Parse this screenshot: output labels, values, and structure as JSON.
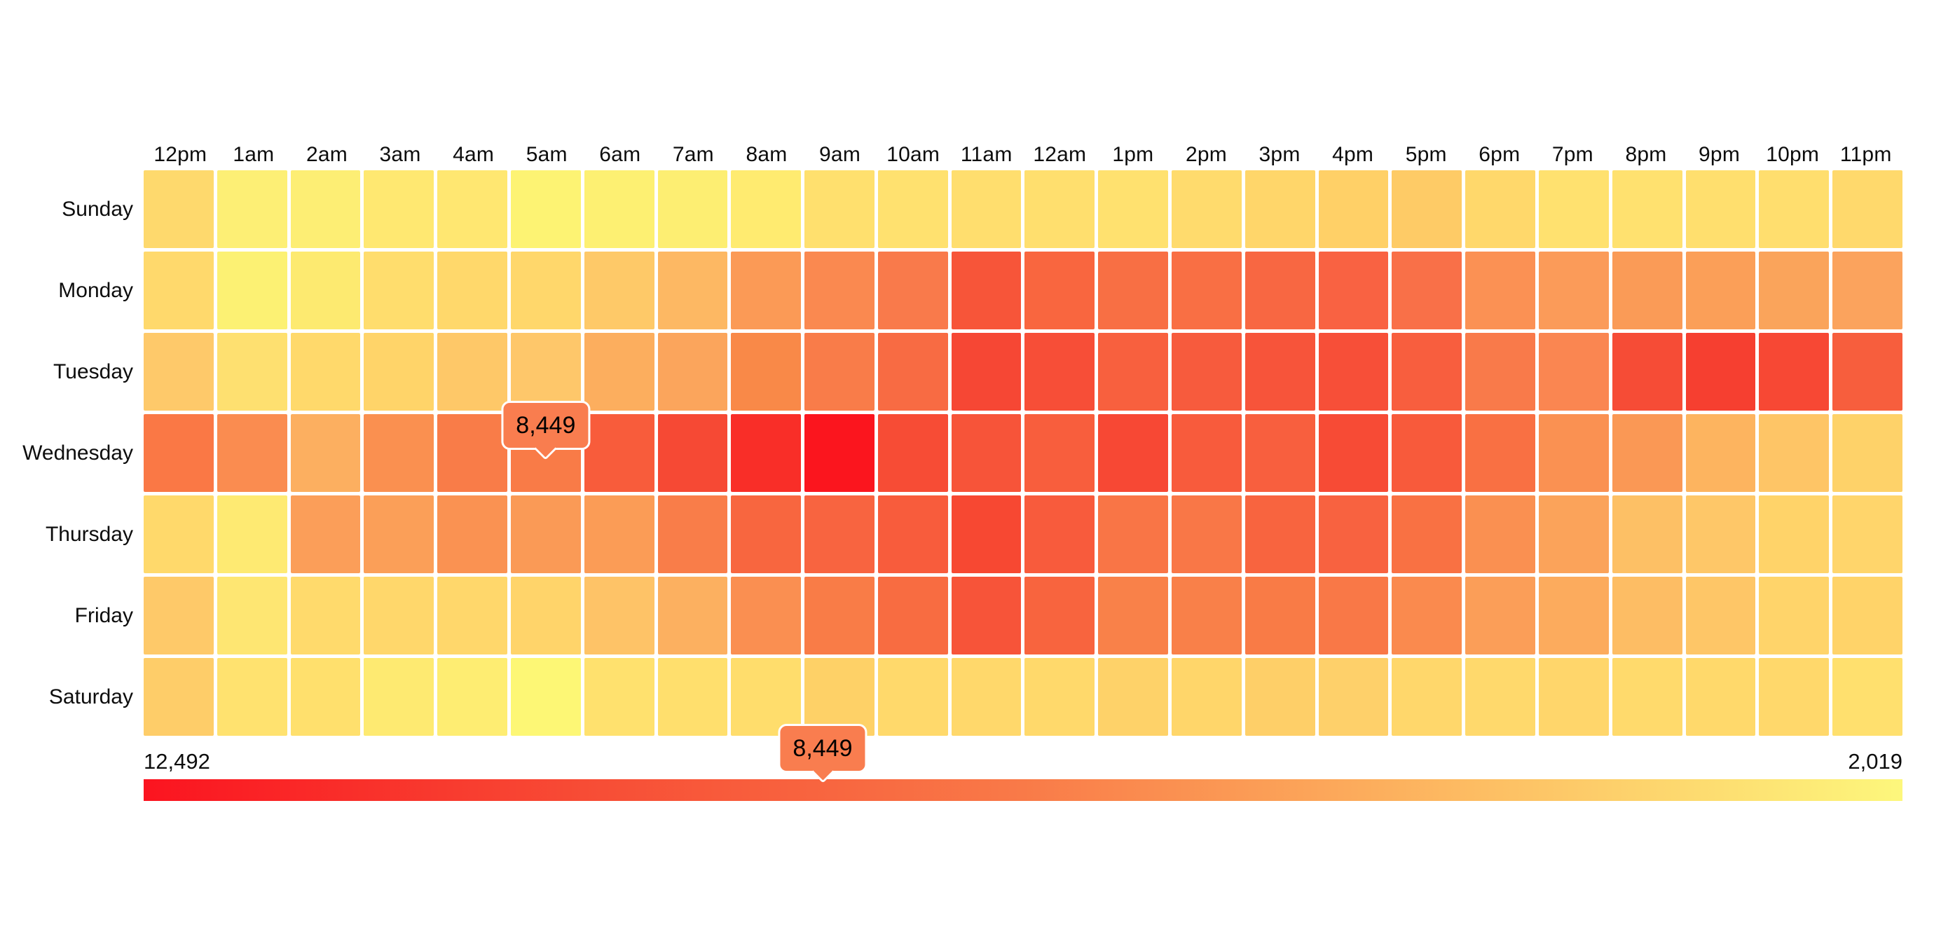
{
  "chart_data": {
    "type": "heatmap",
    "title": "",
    "x_labels": [
      "12pm",
      "1am",
      "2am",
      "3am",
      "4am",
      "5am",
      "6am",
      "7am",
      "8am",
      "9am",
      "10am",
      "11am",
      "12am",
      "1pm",
      "2pm",
      "3pm",
      "4pm",
      "5pm",
      "6pm",
      "7pm",
      "8pm",
      "9pm",
      "10pm",
      "11pm"
    ],
    "y_labels": [
      "Sunday",
      "Monday",
      "Tuesday",
      "Wednesday",
      "Thursday",
      "Friday",
      "Saturday"
    ],
    "value_range": {
      "min": 2019,
      "max": 12492
    },
    "values": [
      [
        3540,
        2480,
        2570,
        2760,
        2800,
        2250,
        2390,
        2480,
        2620,
        3120,
        3080,
        3210,
        3170,
        3080,
        3350,
        3580,
        3860,
        4090,
        3490,
        3080,
        3080,
        3210,
        3210,
        3440
      ],
      [
        3440,
        2340,
        2660,
        3260,
        3490,
        3540,
        4180,
        4960,
        6340,
        7120,
        7810,
        9510,
        8730,
        8310,
        8310,
        8680,
        8910,
        8270,
        6750,
        6290,
        6290,
        6110,
        5880,
        5920
      ],
      [
        4180,
        3120,
        3440,
        3670,
        4220,
        4270,
        5420,
        5830,
        7120,
        7720,
        8500,
        10150,
        9830,
        9000,
        9230,
        9550,
        9780,
        9090,
        7810,
        7260,
        9920,
        10520,
        10100,
        9090
      ],
      [
        7900,
        6980,
        5370,
        6800,
        7720,
        8449,
        9190,
        10060,
        11300,
        12492,
        9920,
        9550,
        9090,
        10100,
        9230,
        9050,
        9970,
        9280,
        8270,
        6750,
        6430,
        5140,
        4360,
        3770
      ],
      [
        3440,
        2660,
        6150,
        6110,
        6700,
        6340,
        6250,
        7670,
        8730,
        8820,
        9190,
        10100,
        9230,
        8040,
        7950,
        8820,
        8910,
        8220,
        6800,
        5920,
        4590,
        4270,
        3720,
        3630
      ],
      [
        4180,
        2850,
        3400,
        3540,
        3540,
        3670,
        4450,
        5330,
        6840,
        7720,
        8450,
        9550,
        8820,
        7490,
        7530,
        7760,
        7900,
        7070,
        6150,
        5560,
        4730,
        4320,
        3670,
        3720
      ],
      [
        4000,
        3030,
        3120,
        2660,
        2530,
        2019,
        3080,
        3170,
        3260,
        3810,
        3440,
        3490,
        3440,
        3770,
        3580,
        3900,
        3860,
        3540,
        3440,
        3580,
        3400,
        3440,
        3490,
        3120
      ]
    ],
    "cell_colors": [
      [
        "#fed96d",
        "#fdef75",
        "#fdee74",
        "#ffe871",
        "#ffe771",
        "#fdf373",
        "#fdf072",
        "#fdee72",
        "#ffeb70",
        "#ffe06e",
        "#ffe16f",
        "#ffde6e",
        "#ffdf6e",
        "#ffe16f",
        "#ffdb6d",
        "#ffd66a",
        "#ffd067",
        "#fecb66",
        "#ffd86b",
        "#ffe16f",
        "#ffe16f",
        "#ffdf6e",
        "#ffde6e",
        "#ffd96c"
      ],
      [
        "#ffd96c",
        "#fcf173",
        "#fdea70",
        "#ffdd6d",
        "#ffd86b",
        "#ffd76b",
        "#fec968",
        "#fdb863",
        "#fb9a56",
        "#fa8950",
        "#f97a4b",
        "#f75539",
        "#f9663f",
        "#f86f44",
        "#f96f44",
        "#f86742",
        "#f96242",
        "#f97048",
        "#fb9154",
        "#fb9b59",
        "#fa9b57",
        "#fb9f58",
        "#faa45b",
        "#fba35d"
      ],
      [
        "#fec96a",
        "#fee070",
        "#ffd96b",
        "#ffd469",
        "#fec868",
        "#fec76a",
        "#fcae5e",
        "#fba55c",
        "#f98948",
        "#f97c49",
        "#f86b43",
        "#f64734",
        "#f74e37",
        "#f8603e",
        "#f75b3d",
        "#f7543a",
        "#f74f38",
        "#f85e3e",
        "#f97a4a",
        "#fa8651",
        "#f64c36",
        "#f63f30",
        "#f74834",
        "#f75e3d"
      ],
      [
        "#fa7845",
        "#fa8c50",
        "#fcaf60",
        "#fa9050",
        "#f97c48",
        "#f97b47",
        "#f85c3b",
        "#f64934",
        "#f92e28",
        "#fb151e",
        "#f74c35",
        "#f75439",
        "#f85e3d",
        "#f74834",
        "#f85b3c",
        "#f85f3e",
        "#f74b35",
        "#f85a3b",
        "#f97043",
        "#fa9152",
        "#fa9855",
        "#fdb45f",
        "#fec566",
        "#fed269"
      ],
      [
        "#ffd96b",
        "#feea72",
        "#fb9e59",
        "#fb9f58",
        "#fa9252",
        "#fa9a56",
        "#fb9c56",
        "#f97d49",
        "#f8663f",
        "#f86440",
        "#f85c3c",
        "#f74832",
        "#f85b3c",
        "#f97546",
        "#f97747",
        "#f8643f",
        "#f86240",
        "#f97143",
        "#fa9051",
        "#fba35a",
        "#fdc065",
        "#fec768",
        "#ffd369",
        "#ffd56b"
      ],
      [
        "#fec969",
        "#fee672",
        "#ffda6c",
        "#ffd76b",
        "#ffd76b",
        "#ffd46a",
        "#fec367",
        "#fcb060",
        "#fa8f51",
        "#f97c47",
        "#f86c41",
        "#f75439",
        "#f8643e",
        "#f98149",
        "#f98049",
        "#f97b46",
        "#f97847",
        "#fa8a4e",
        "#fb9e58",
        "#fcab5d",
        "#fdbd64",
        "#fec667",
        "#ffd46a",
        "#ffd369"
      ],
      [
        "#fecd69",
        "#ffe26f",
        "#ffe06d",
        "#feea71",
        "#feed72",
        "#fdf775",
        "#ffe16e",
        "#ffdf6d",
        "#ffdd6c",
        "#fed167",
        "#ffd96b",
        "#ffd86b",
        "#ffd96b",
        "#fed269",
        "#ffd66a",
        "#fecf68",
        "#fed06a",
        "#ffd76b",
        "#ffd96c",
        "#ffd66b",
        "#ffda6c",
        "#ffd96b",
        "#ffd86b",
        "#ffe06e"
      ]
    ],
    "hovered_cell": {
      "day": "Wednesday",
      "hour": "5am",
      "value": 8449,
      "label": "8,449"
    },
    "legend": {
      "left_label": "12,492",
      "right_label": "2,019",
      "marker_value": 8449,
      "marker_label": "8,449",
      "min": 2019,
      "max": 12492,
      "gradient_stops": [
        "#fb1420",
        "#f74c35",
        "#f97a48",
        "#fdbb62",
        "#fdf77c"
      ]
    },
    "colors": {
      "max_color": "#fb1420",
      "min_color": "#fdf775",
      "tooltip_fill": "#f97d4f",
      "tooltip_border": "#ffffff",
      "text": "#0d0d0d",
      "grid_gap": "#ffffff"
    },
    "layout_hints": {
      "legend_position": "bottom",
      "grid": "white 5px gaps"
    }
  }
}
